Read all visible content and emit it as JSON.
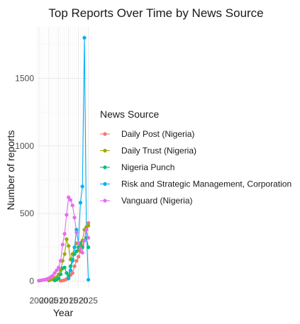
{
  "chart_data": {
    "type": "line",
    "title": "Top Reports Over Time by News Source",
    "xlabel": "Year",
    "ylabel": "Number of reports",
    "x_ticks": [
      "2000",
      "2005",
      "2010",
      "2015",
      "2020",
      "2025"
    ],
    "y_ticks": [
      0,
      500,
      1000,
      1500
    ],
    "xlim": [
      1999,
      2025.5
    ],
    "ylim": [
      -50,
      1880
    ],
    "grid": true,
    "legend": {
      "title": "News Source",
      "position": "right"
    },
    "series": [
      {
        "name": "Daily Post (Nigeria)",
        "color": "#F8766D",
        "x": [
          2011,
          2012,
          2013,
          2014,
          2015,
          2016,
          2017,
          2018,
          2019,
          2020,
          2021,
          2022,
          2023,
          2024,
          2025
        ],
        "y": [
          2,
          4,
          8,
          15,
          25,
          45,
          60,
          110,
          150,
          180,
          220,
          260,
          300,
          400,
          430
        ]
      },
      {
        "name": "Daily Trust (Nigeria)",
        "color": "#A3A500",
        "x": [
          2005,
          2006,
          2007,
          2008,
          2009,
          2010,
          2011,
          2012,
          2013,
          2014,
          2015,
          2016,
          2017,
          2018,
          2019,
          2020,
          2021,
          2022,
          2023,
          2024,
          2025
        ],
        "y": [
          5,
          10,
          15,
          20,
          30,
          50,
          80,
          150,
          200,
          310,
          260,
          160,
          200,
          250,
          280,
          230,
          260,
          300,
          380,
          400,
          410
        ]
      },
      {
        "name": "Nigeria Punch",
        "color": "#00BF7D",
        "x": [
          2008,
          2009,
          2010,
          2011,
          2012,
          2013,
          2014,
          2015,
          2016,
          2017,
          2018,
          2019,
          2020,
          2021,
          2022,
          2023,
          2024,
          2025
        ],
        "y": [
          5,
          10,
          20,
          50,
          95,
          100,
          60,
          40,
          110,
          160,
          200,
          220,
          250,
          280,
          250,
          300,
          320,
          250
        ]
      },
      {
        "name": "Risk and Strategic Management, Corporation",
        "color": "#00B0F6",
        "x": [
          2015,
          2016,
          2017,
          2018,
          2019,
          2020,
          2021,
          2022,
          2023,
          2024,
          2025
        ],
        "y": [
          20,
          80,
          150,
          250,
          380,
          280,
          580,
          700,
          1800,
          380,
          10
        ]
      },
      {
        "name": "Vanguard (Nigeria)",
        "color": "#E76BF3",
        "x": [
          2000,
          2001,
          2002,
          2003,
          2004,
          2005,
          2006,
          2007,
          2008,
          2009,
          2010,
          2011,
          2012,
          2013,
          2014,
          2015,
          2016,
          2017,
          2018,
          2019,
          2020,
          2021,
          2022,
          2023,
          2024,
          2025
        ],
        "y": [
          3,
          5,
          8,
          10,
          15,
          20,
          30,
          40,
          60,
          80,
          100,
          150,
          270,
          350,
          490,
          620,
          600,
          560,
          470,
          360,
          280,
          240,
          210,
          300,
          380,
          320
        ]
      }
    ]
  }
}
